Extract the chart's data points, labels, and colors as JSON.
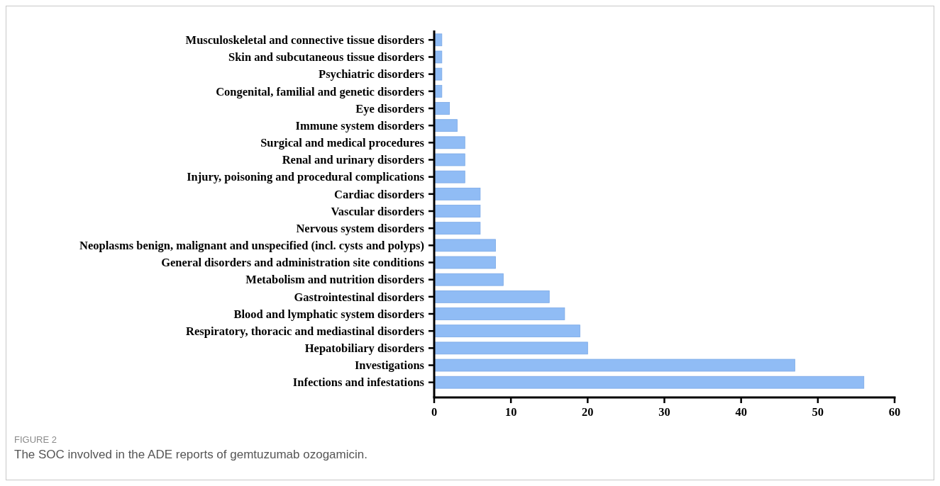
{
  "chart_data": {
    "type": "bar",
    "orientation": "horizontal",
    "categories": [
      "Musculoskeletal and connective tissue disorders",
      "Skin and subcutaneous tissue disorders",
      "Psychiatric disorders",
      "Congenital, familial and genetic disorders",
      "Eye disorders",
      "Immune system disorders",
      "Surgical and medical procedures",
      "Renal and urinary disorders",
      "Injury, poisoning and procedural complications",
      "Cardiac disorders",
      "Vascular disorders",
      "Nervous system disorders",
      "Neoplasms benign, malignant and unspecified (incl. cysts and polyps)",
      "General disorders and administration site conditions",
      "Metabolism and nutrition disorders",
      "Gastrointestinal disorders",
      "Blood and lymphatic system disorders",
      "Respiratory, thoracic and mediastinal disorders",
      "Hepatobiliary disorders",
      "Investigations",
      "Infections and infestations"
    ],
    "values": [
      1,
      1,
      1,
      1,
      2,
      3,
      4,
      4,
      4,
      6,
      6,
      6,
      8,
      8,
      9,
      15,
      17,
      19,
      20,
      47,
      56
    ],
    "color": "#90bcf5",
    "xlim": [
      0,
      60
    ],
    "xticks": [
      0,
      10,
      20,
      30,
      40,
      50,
      60
    ],
    "grid": false,
    "annotations": [
      "FIGURE 2",
      "The SOC involved in the ADE reports of gemtuzumab ozogamicin."
    ]
  }
}
